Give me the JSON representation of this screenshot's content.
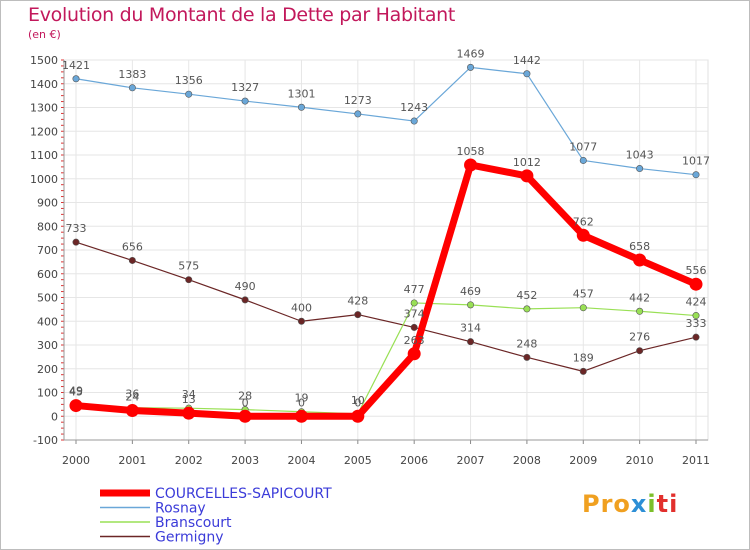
{
  "chart_data": {
    "type": "line",
    "title": "Evolution du Montant de la Dette par Habitant",
    "unit": "(en €)",
    "x": [
      "2000",
      "2001",
      "2002",
      "2003",
      "2004",
      "2005",
      "2006",
      "2007",
      "2008",
      "2009",
      "2010",
      "2011"
    ],
    "yticks": [
      "1500",
      "1400",
      "1300",
      "1200",
      "1100",
      "1000",
      "900",
      "800",
      "700",
      "600",
      "500",
      "400",
      "300",
      "200",
      "100",
      "0",
      "-100"
    ],
    "ylim": [
      -100,
      1500
    ],
    "grid": true,
    "legend_placement": "bottom-left",
    "series": [
      {
        "name": "Rosnay",
        "color": "#6aa7d8",
        "width": 1.2,
        "dot": 3.2,
        "values": [
          1421,
          1383,
          1356,
          1327,
          1301,
          1273,
          1243,
          1469,
          1442,
          1077,
          1043,
          1017
        ],
        "labels": [
          "1421",
          "1383",
          "1356",
          "1327",
          "1301",
          "1273",
          "1243",
          "1469",
          "1442",
          "1077",
          "1043",
          "1017"
        ]
      },
      {
        "name": "Germigny",
        "color": "#6b2626",
        "width": 1.2,
        "dot": 3.2,
        "values": [
          733,
          656,
          575,
          490,
          400,
          428,
          374,
          314,
          248,
          189,
          276,
          333
        ],
        "labels": [
          "733",
          "656",
          "575",
          "490",
          "400",
          "428",
          "374",
          "314",
          "248",
          "189",
          "276",
          "333"
        ]
      },
      {
        "name": "Branscourt",
        "color": "#99e055",
        "width": 1.2,
        "dot": 3.2,
        "values": [
          49,
          36,
          34,
          28,
          19,
          10,
          477,
          469,
          452,
          457,
          442,
          424
        ],
        "labels": [
          "49",
          "36",
          "34",
          "28",
          "19",
          "10",
          "477",
          "469",
          "452",
          "457",
          "442",
          "424"
        ]
      },
      {
        "name": "COURCELLES-SAPICOURT",
        "color": "#ff0000",
        "width": 7,
        "dot": 6,
        "values": [
          45,
          24,
          13,
          0,
          0,
          0,
          263,
          1058,
          1012,
          762,
          658,
          556
        ],
        "labels": [
          "45",
          "24",
          "13",
          "0",
          "0",
          "0",
          "263",
          "1058",
          "1012",
          "762",
          "658",
          "556"
        ]
      }
    ],
    "legend_order": [
      "COURCELLES-SAPICOURT",
      "Rosnay",
      "Branscourt",
      "Germigny"
    ]
  },
  "brand": {
    "p1": "Pro",
    "p2": "x",
    "p3": "i",
    "p4": "ti"
  }
}
